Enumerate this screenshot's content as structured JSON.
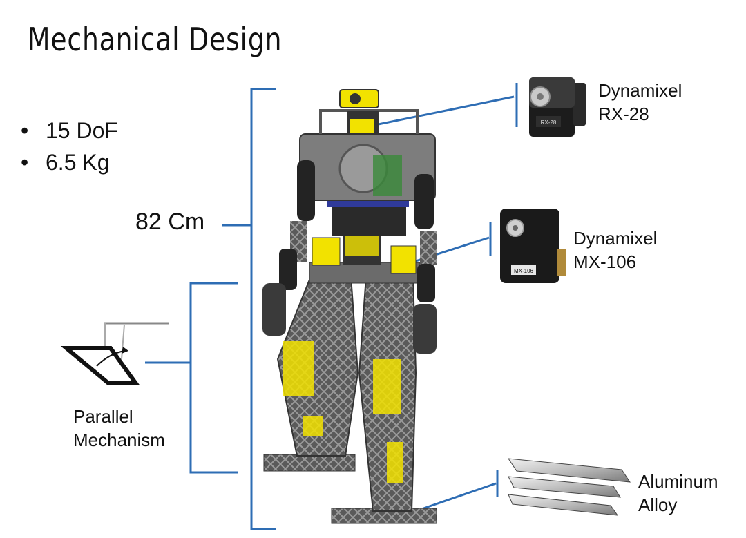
{
  "title": "Mechanical Design",
  "specs": [
    "15 DoF",
    "6.5 Kg"
  ],
  "height_label": "82 Cm",
  "parallel": {
    "line1": "Parallel",
    "line2": "Mechanism"
  },
  "rx28": {
    "line1": "Dynamixel",
    "line2": "RX-28",
    "chip": "RX-28"
  },
  "mx106": {
    "line1": "Dynamixel",
    "line2": "MX-106",
    "chip": "MX-106"
  },
  "aluminum": {
    "line1": "Aluminum",
    "line2": "Alloy"
  },
  "colors": {
    "bracket": "#2e6db4",
    "robot_frame": "#4a4a4a",
    "servo_highlight": "#f2e200",
    "motor_body": "#1c1c1c"
  }
}
